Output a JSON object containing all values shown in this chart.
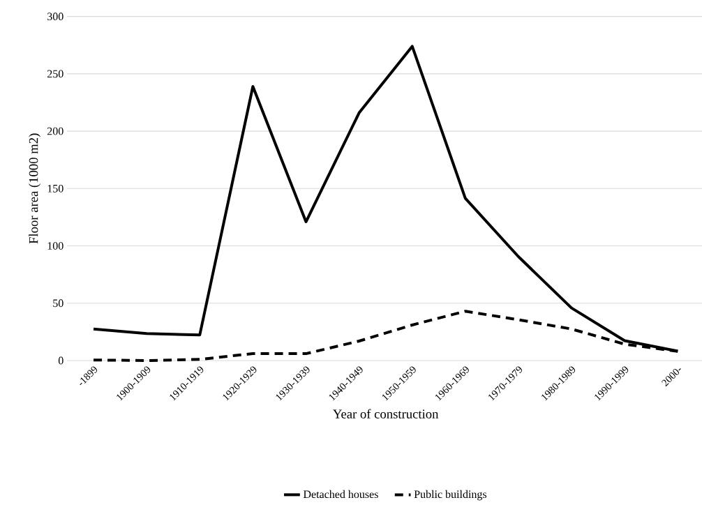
{
  "chart_data": {
    "type": "line",
    "xlabel": "Year of construction",
    "ylabel": "Floor area (1000 m2)",
    "categories": [
      "-1899",
      "1900-1909",
      "1910-1919",
      "1920-1929",
      "1930-1939",
      "1940-1949",
      "1950-1959",
      "1960-1969",
      "1970-1979",
      "1980-1989",
      "1990-1999",
      "2000-"
    ],
    "series": [
      {
        "name": "Detached houses",
        "color": "#000000",
        "line_style": "solid",
        "values": [
          27.5,
          23.5,
          22.4,
          239,
          121,
          216,
          274,
          141.5,
          90.6,
          45.8,
          17.3,
          8.2
        ]
      },
      {
        "name": "Public buildings",
        "color": "#000000",
        "line_style": "dashed",
        "values": [
          0.5,
          0,
          1,
          6.1,
          6,
          17,
          31,
          43,
          35.6,
          27.5,
          14.3,
          8
        ]
      }
    ],
    "ylim": [
      0,
      300
    ],
    "yticks": [
      0,
      50,
      100,
      150,
      200,
      250,
      300
    ],
    "grid": "y",
    "legend": "bottom",
    "marker": "none"
  }
}
